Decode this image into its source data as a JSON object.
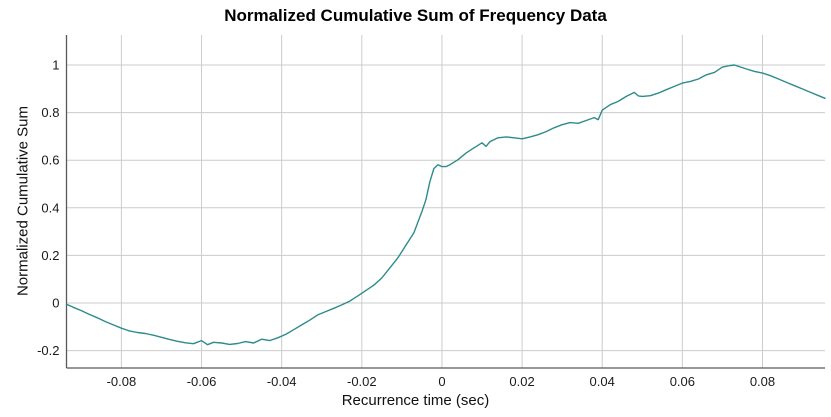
{
  "chart_data": {
    "type": "line",
    "title": "Normalized Cumulative Sum of Frequency Data",
    "xlabel": "Recurrence time (sec)",
    "ylabel": "Normalized Cumulative Sum",
    "xlim": [
      -0.0937,
      0.0956
    ],
    "ylim": [
      -0.273,
      1.126
    ],
    "xticks": [
      -0.08,
      -0.06,
      -0.04,
      -0.02,
      0,
      0.02,
      0.04,
      0.06,
      0.08
    ],
    "xtick_labels": [
      "-0.08",
      "-0.06",
      "-0.04",
      "-0.02",
      "0",
      "0.02",
      "0.04",
      "0.06",
      "0.08"
    ],
    "yticks": [
      -0.2,
      0,
      0.2,
      0.4,
      0.6,
      0.8,
      1
    ],
    "ytick_labels": [
      "-0.2",
      "0",
      "0.2",
      "0.4",
      "0.6",
      "0.8",
      "1"
    ],
    "grid": true,
    "legend": null,
    "colors": {
      "line": "#2e8b8b",
      "grid": "#cccccc",
      "spine": "#595959",
      "tick_text": "#1a1a1a",
      "title_text": "#000000",
      "background": "#ffffff"
    },
    "series": [
      {
        "name": "normalized-cumulative-sum",
        "x": [
          -0.0937,
          -0.092,
          -0.09,
          -0.088,
          -0.086,
          -0.084,
          -0.082,
          -0.08,
          -0.078,
          -0.076,
          -0.074,
          -0.072,
          -0.07,
          -0.068,
          -0.066,
          -0.064,
          -0.062,
          -0.06,
          -0.0585,
          -0.057,
          -0.055,
          -0.053,
          -0.051,
          -0.049,
          -0.047,
          -0.045,
          -0.043,
          -0.041,
          -0.039,
          -0.037,
          -0.035,
          -0.033,
          -0.031,
          -0.029,
          -0.027,
          -0.025,
          -0.023,
          -0.021,
          -0.019,
          -0.017,
          -0.015,
          -0.013,
          -0.011,
          -0.009,
          -0.007,
          -0.005,
          -0.004,
          -0.003,
          -0.002,
          -0.001,
          0.0,
          0.001,
          0.002,
          0.004,
          0.006,
          0.008,
          0.01,
          0.011,
          0.012,
          0.014,
          0.016,
          0.018,
          0.02,
          0.022,
          0.024,
          0.026,
          0.028,
          0.03,
          0.032,
          0.034,
          0.036,
          0.038,
          0.039,
          0.04,
          0.042,
          0.044,
          0.046,
          0.048,
          0.049,
          0.05,
          0.052,
          0.054,
          0.056,
          0.058,
          0.06,
          0.062,
          0.064,
          0.066,
          0.068,
          0.07,
          0.072,
          0.073,
          0.074,
          0.076,
          0.078,
          0.08,
          0.082,
          0.084,
          0.086,
          0.088,
          0.09,
          0.092,
          0.094,
          0.0956
        ],
        "y": [
          -0.005,
          -0.018,
          -0.032,
          -0.048,
          -0.062,
          -0.078,
          -0.092,
          -0.106,
          -0.117,
          -0.124,
          -0.128,
          -0.135,
          -0.144,
          -0.153,
          -0.161,
          -0.167,
          -0.171,
          -0.158,
          -0.175,
          -0.165,
          -0.168,
          -0.174,
          -0.17,
          -0.162,
          -0.168,
          -0.152,
          -0.158,
          -0.146,
          -0.132,
          -0.112,
          -0.092,
          -0.072,
          -0.05,
          -0.036,
          -0.022,
          -0.008,
          0.008,
          0.03,
          0.052,
          0.075,
          0.105,
          0.148,
          0.19,
          0.243,
          0.295,
          0.384,
          0.434,
          0.51,
          0.565,
          0.581,
          0.573,
          0.573,
          0.581,
          0.602,
          0.63,
          0.652,
          0.673,
          0.658,
          0.678,
          0.694,
          0.698,
          0.694,
          0.69,
          0.698,
          0.707,
          0.72,
          0.736,
          0.749,
          0.758,
          0.755,
          0.767,
          0.779,
          0.77,
          0.81,
          0.833,
          0.847,
          0.868,
          0.885,
          0.87,
          0.868,
          0.871,
          0.882,
          0.896,
          0.91,
          0.924,
          0.931,
          0.941,
          0.959,
          0.969,
          0.991,
          0.998,
          1.0,
          0.994,
          0.983,
          0.973,
          0.966,
          0.955,
          0.941,
          0.927,
          0.913,
          0.899,
          0.885,
          0.871,
          0.86
        ]
      }
    ]
  }
}
